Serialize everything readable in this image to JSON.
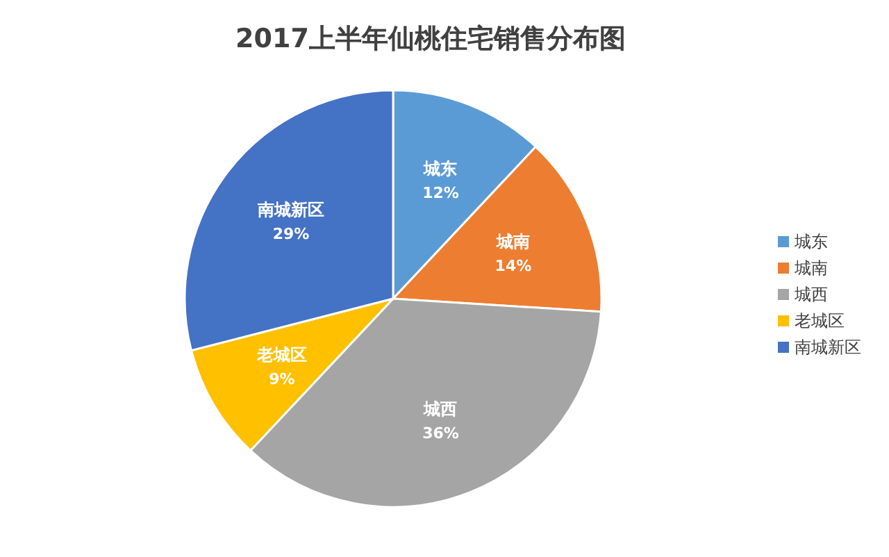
{
  "chart_data": {
    "type": "pie",
    "title": "2017上半年仙桃住宅销售分布图",
    "categories": [
      "城东",
      "城南",
      "城西",
      "老城区",
      "南城新区"
    ],
    "values": [
      12,
      14,
      36,
      9,
      29
    ],
    "colors": [
      "#5b9bd5",
      "#ed7d31",
      "#a5a5a5",
      "#ffc000",
      "#4472c4"
    ],
    "value_labels": [
      "12%",
      "14%",
      "36%",
      "9%",
      "29%"
    ],
    "legend": "right"
  }
}
